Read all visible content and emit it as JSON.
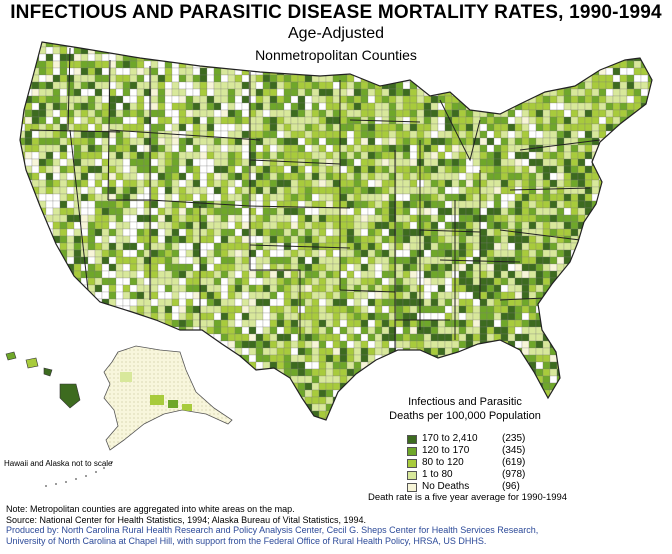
{
  "title": "INFECTIOUS AND PARASITIC DISEASE MORTALITY RATES, 1990-1994",
  "subtitle": "Age-Adjusted",
  "subtitle2": "Nonmetropolitan Counties",
  "legend": {
    "title_line1": "Infectious and Parasitic",
    "title_line2": "Deaths per 100,000 Population",
    "items": [
      {
        "label": "170 to 2,410",
        "count": "(235)",
        "color": "#3d6b1f"
      },
      {
        "label": "120 to 170",
        "count": "(345)",
        "color": "#6fa72a"
      },
      {
        "label": "80 to 120",
        "count": "(619)",
        "color": "#a8cb3c"
      },
      {
        "label": "1 to 80",
        "count": "(978)",
        "color": "#d8e89b"
      },
      {
        "label": "No Deaths",
        "count": "(96)",
        "color": "#f7f5d8"
      }
    ],
    "note": "Death rate is a five year average for 1990-1994"
  },
  "inset_note": "Hawaii and Alaska not to scale",
  "footer": {
    "line1": "Note: Metropolitan counties are aggregated into white areas on the map.",
    "line2": "Source: National Center for Health Statistics, 1994; Alaska Bureau of Vital Statistics, 1994.",
    "line3": "Produced by: North Carolina Rural Health Research and Policy Analysis Center, Cecil G. Sheps Center for Health Services Research,",
    "line4": "University of North Carolina at Chapel Hill, with support from the Federal Office of Rural Health Policy, HRSA, US DHHS."
  }
}
